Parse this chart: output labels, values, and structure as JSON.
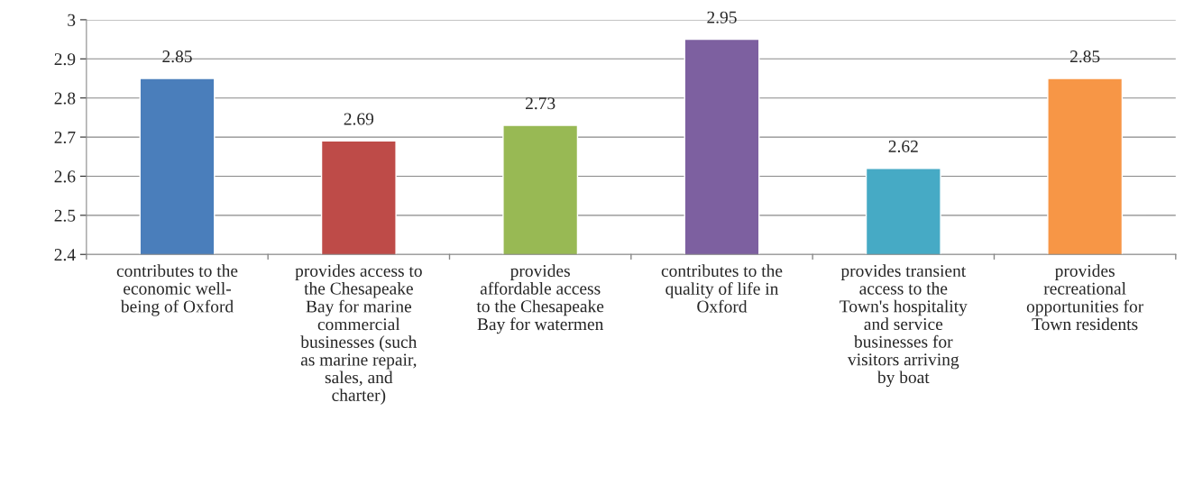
{
  "chart_data": {
    "type": "bar",
    "categories": [
      "contributes to the\neconomic well-\nbeing of Oxford",
      "provides access to\nthe Chesapeake\nBay for marine\ncommercial\nbusinesses (such\nas marine repair,\nsales, and\ncharter)",
      "provides\naffordable access\nto the Chesapeake\nBay for watermen",
      "contributes to the\nquality of life in\nOxford",
      "provides transient\naccess to the\nTown's hospitality\nand service\nbusinesses for\nvisitors arriving\nby boat",
      "provides\nrecreational\nopportunities for\nTown residents"
    ],
    "values": [
      2.85,
      2.69,
      2.73,
      2.95,
      2.62,
      2.85
    ],
    "colors": [
      "#4a7ebb",
      "#be4b48",
      "#98b954",
      "#7d60a0",
      "#46aac5",
      "#f79646"
    ],
    "ylim": [
      2.4,
      3
    ],
    "yticks": [
      2.4,
      2.5,
      2.6,
      2.7,
      2.8,
      2.9,
      3
    ],
    "grid": "y",
    "data_labels": true
  }
}
